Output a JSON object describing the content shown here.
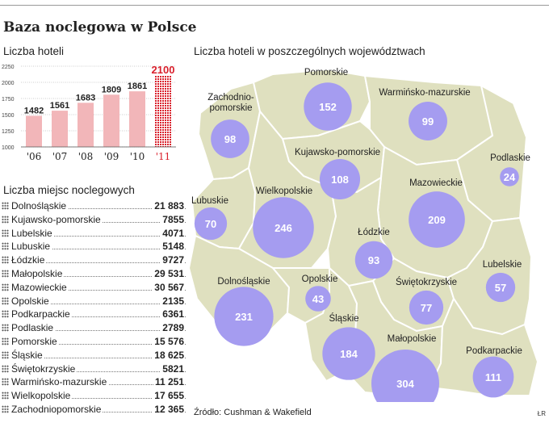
{
  "title": "Baza noclegowa w Polsce",
  "hotels_section": "Liczba hoteli",
  "beds_section": "Liczba miejsc noclegowych",
  "map_section": "Liczba hoteli w poszczególnych województwach",
  "source": "Źródło: Cushman & Wakefield",
  "credit": "ŁR",
  "colors": {
    "bar": "#f2b6b9",
    "bar_highlight": "#d9202c",
    "bubble": "#a59cf0",
    "region": "#dfe0bf",
    "region_border": "#ffffff"
  },
  "chart_data": [
    {
      "type": "bar",
      "title": "Liczba hoteli",
      "categories": [
        "'06",
        "'07",
        "'08",
        "'09",
        "'10",
        "'11"
      ],
      "values": [
        1482,
        1561,
        1683,
        1809,
        1861,
        2100
      ],
      "highlight_index": 5,
      "yticks": [
        1000,
        1250,
        1500,
        1750,
        2000,
        2250
      ],
      "ylim": [
        1000,
        2250
      ],
      "grid": true
    },
    {
      "type": "table",
      "title": "Liczba miejsc noclegowych",
      "rows": [
        {
          "name": "Dolnośląskie",
          "value": "21 883"
        },
        {
          "name": "Kujawsko-pomorskie",
          "value": "7855"
        },
        {
          "name": "Lubelskie",
          "value": "4071"
        },
        {
          "name": "Lubuskie",
          "value": "5148"
        },
        {
          "name": "Łódzkie",
          "value": "9727"
        },
        {
          "name": "Małopolskie",
          "value": "29 531"
        },
        {
          "name": "Mazowieckie",
          "value": "30 567"
        },
        {
          "name": "Opolskie",
          "value": "2135"
        },
        {
          "name": "Podkarpackie",
          "value": "6361"
        },
        {
          "name": "Podlaskie",
          "value": "2789"
        },
        {
          "name": "Pomorskie",
          "value": "15 576"
        },
        {
          "name": "Śląskie",
          "value": "18 625"
        },
        {
          "name": "Świętokrzyskie",
          "value": "5821"
        },
        {
          "name": "Warmińsko-mazurskie",
          "value": "11 251"
        },
        {
          "name": "Wielkopolskie",
          "value": "17 655"
        },
        {
          "name": "Zachodniopomorskie",
          "value": "12 365"
        }
      ]
    },
    {
      "type": "bubble-map",
      "title": "Liczba hoteli w poszczególnych województwach",
      "regions": [
        {
          "label": [
            "Pomorskie"
          ],
          "value": 152
        },
        {
          "label": [
            "Warmińsko-mazurskie"
          ],
          "value": 99
        },
        {
          "label": [
            "Zachodnio-",
            "pomorskie"
          ],
          "value": 98
        },
        {
          "label": [
            "Kujawsko-pomorskie"
          ],
          "value": 108
        },
        {
          "label": [
            "Podlaskie"
          ],
          "value": 24
        },
        {
          "label": [
            "Lubuskie"
          ],
          "value": 70
        },
        {
          "label": [
            "Wielkopolskie"
          ],
          "value": 246
        },
        {
          "label": [
            "Mazowieckie"
          ],
          "value": 209
        },
        {
          "label": [
            "Łódzkie"
          ],
          "value": 93
        },
        {
          "label": [
            "Dolnośląskie"
          ],
          "value": 231
        },
        {
          "label": [
            "Opolskie"
          ],
          "value": 43
        },
        {
          "label": [
            "Świętokrzyskie"
          ],
          "value": 77
        },
        {
          "label": [
            "Lubelskie"
          ],
          "value": 57
        },
        {
          "label": [
            "Śląskie"
          ],
          "value": 184
        },
        {
          "label": [
            "Małopolskie"
          ],
          "value": 304
        },
        {
          "label": [
            "Podkarpackie"
          ],
          "value": 111
        }
      ]
    }
  ]
}
